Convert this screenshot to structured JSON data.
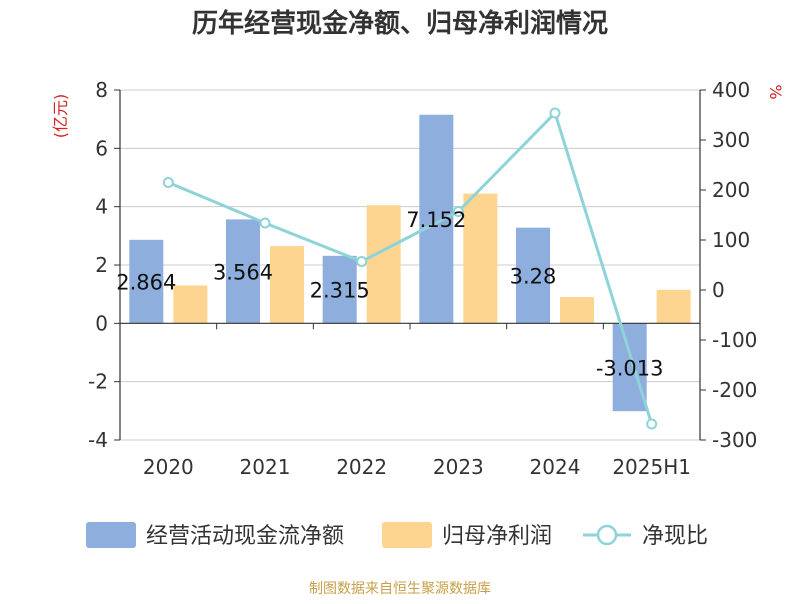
{
  "chart_data": {
    "type": "bar",
    "title": "历年经营现金净额、归母净利润情况",
    "categories": [
      "2020",
      "2021",
      "2022",
      "2023",
      "2024",
      "2025H1"
    ],
    "y_left": {
      "label": "(亿元)",
      "ylim": [
        -4,
        8
      ],
      "ticks": [
        -4,
        -2,
        0,
        2,
        4,
        6,
        8
      ]
    },
    "y_right": {
      "label": "%",
      "ylim": [
        -300,
        400
      ],
      "ticks": [
        -300,
        -200,
        -100,
        0,
        100,
        200,
        300,
        400
      ]
    },
    "series": [
      {
        "name": "经营活动现金流净额",
        "type": "bar",
        "axis": "left",
        "color": "#8eaedd",
        "values": [
          2.864,
          3.564,
          2.315,
          7.152,
          3.28,
          -3.013
        ],
        "labels": [
          "2.864",
          "3.564",
          "2.315",
          "7.152",
          "3.28",
          "-3.013"
        ]
      },
      {
        "name": "归母净利润",
        "type": "bar",
        "axis": "left",
        "color": "#fdd591",
        "values": [
          1.3,
          2.65,
          4.05,
          4.45,
          0.9,
          1.15
        ]
      },
      {
        "name": "净现比",
        "type": "line",
        "axis": "right",
        "color": "#8ed3d8",
        "values": [
          215,
          134,
          57,
          157,
          354,
          -268
        ]
      }
    ],
    "grid": true,
    "legend_position": "bottom"
  },
  "source_text": "制图数据来自恒生聚源数据库"
}
